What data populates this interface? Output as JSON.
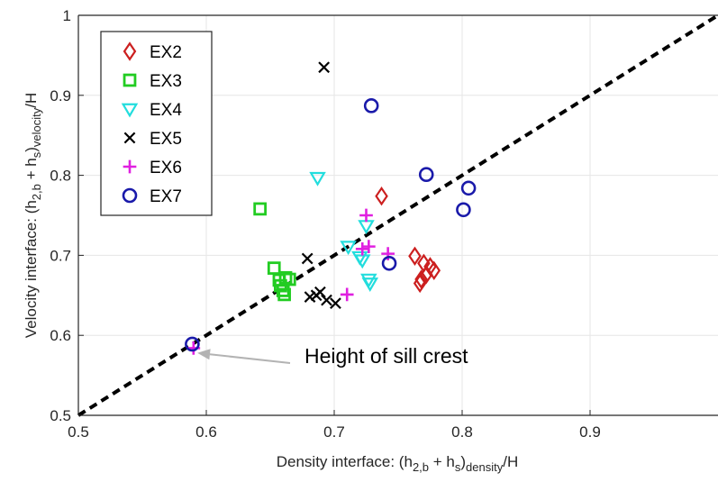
{
  "chart_data": {
    "type": "scatter",
    "xlabel": {
      "main": "Density interface: (h",
      "sub1": "2,b",
      "mid": " + h",
      "sub2": "s",
      "close": ")",
      "sub3": "density",
      "tail": "/H"
    },
    "ylabel": {
      "main": "Velocity interface: (h",
      "sub1": "2,b",
      "mid": " + h",
      "sub2": "s",
      "close": ")",
      "sub3": "velocity",
      "tail": "/H"
    },
    "xlim": [
      0.5,
      1.0
    ],
    "ylim": [
      0.5,
      1.0
    ],
    "x_ticks": [
      0.5,
      0.6,
      0.7,
      0.8,
      0.9
    ],
    "x_tick_labels": [
      "0.5",
      "0.6",
      "0.7",
      "0.8",
      "0.9"
    ],
    "y_ticks": [
      0.5,
      0.6,
      0.7,
      0.8,
      0.9,
      1.0
    ],
    "y_tick_labels": [
      "0.5",
      "0.6",
      "0.7",
      "0.8",
      "0.9",
      "1"
    ],
    "grid": true,
    "legend_position": "top-left",
    "reference_line": {
      "style": "dashed",
      "color": "#000000",
      "x": [
        0.5,
        1.0
      ],
      "y": [
        0.5,
        1.0
      ]
    },
    "series": [
      {
        "name": "EX2",
        "marker": "diamond",
        "color": "#cc1f1f",
        "points": [
          [
            0.737,
            0.774
          ],
          [
            0.763,
            0.699
          ],
          [
            0.767,
            0.665
          ],
          [
            0.768,
            0.67
          ],
          [
            0.77,
            0.69
          ],
          [
            0.772,
            0.676
          ],
          [
            0.775,
            0.686
          ],
          [
            0.778,
            0.681
          ]
        ]
      },
      {
        "name": "EX3",
        "marker": "square",
        "color": "#22cc22",
        "points": [
          [
            0.642,
            0.758
          ],
          [
            0.653,
            0.684
          ],
          [
            0.657,
            0.669
          ],
          [
            0.658,
            0.662
          ],
          [
            0.66,
            0.656
          ],
          [
            0.661,
            0.651
          ],
          [
            0.662,
            0.672
          ],
          [
            0.665,
            0.67
          ]
        ]
      },
      {
        "name": "EX4",
        "marker": "triangle-down",
        "color": "#22dddd",
        "points": [
          [
            0.687,
            0.797
          ],
          [
            0.711,
            0.711
          ],
          [
            0.72,
            0.698
          ],
          [
            0.722,
            0.694
          ],
          [
            0.725,
            0.737
          ],
          [
            0.727,
            0.67
          ],
          [
            0.728,
            0.665
          ]
        ]
      },
      {
        "name": "EX5",
        "marker": "x",
        "color": "#000000",
        "points": [
          [
            0.692,
            0.935
          ],
          [
            0.679,
            0.696
          ],
          [
            0.681,
            0.648
          ],
          [
            0.686,
            0.65
          ],
          [
            0.689,
            0.654
          ],
          [
            0.694,
            0.644
          ],
          [
            0.701,
            0.64
          ]
        ]
      },
      {
        "name": "EX6",
        "marker": "plus",
        "color": "#e020e0",
        "points": [
          [
            0.59,
            0.584
          ],
          [
            0.71,
            0.651
          ],
          [
            0.722,
            0.708
          ],
          [
            0.725,
            0.75
          ],
          [
            0.727,
            0.711
          ],
          [
            0.742,
            0.702
          ]
        ]
      },
      {
        "name": "EX7",
        "marker": "circle",
        "color": "#1a1aaa",
        "points": [
          [
            0.589,
            0.589
          ],
          [
            0.729,
            0.887
          ],
          [
            0.743,
            0.69
          ],
          [
            0.772,
            0.801
          ],
          [
            0.801,
            0.757
          ],
          [
            0.805,
            0.784
          ]
        ]
      }
    ],
    "annotations": [
      {
        "text": "Height of sill crest",
        "arrow_to": [
          0.593,
          0.578
        ]
      }
    ]
  }
}
